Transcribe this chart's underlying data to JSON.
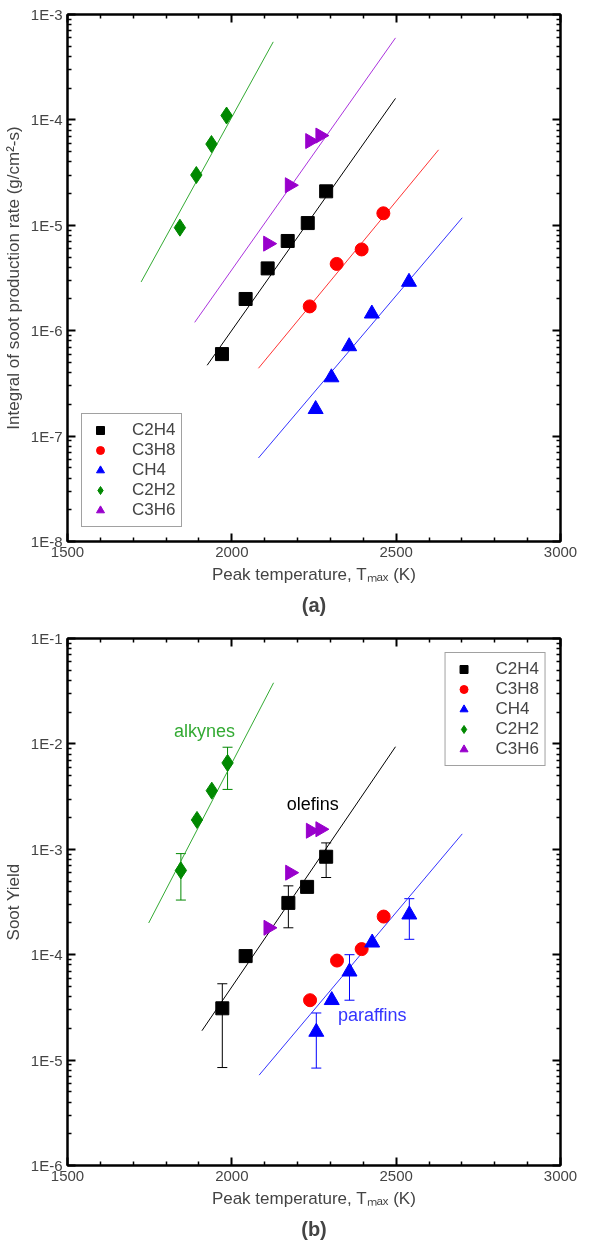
{
  "chart_data": [
    {
      "type": "scatter",
      "title": "(a)",
      "xlabel": "Peak temperature, Tₘₐₓ (K)",
      "ylabel": "Integral of soot production rate (g/cm²-s)",
      "xlim": [
        1500,
        3000
      ],
      "xticks": [
        1500,
        2000,
        2500,
        3000
      ],
      "ylim": [
        1e-08,
        0.001
      ],
      "log": "y",
      "yticks": [
        {
          "value": 1e-08,
          "label": "1E-8"
        },
        {
          "value": 1e-07,
          "label": "1E-7"
        },
        {
          "value": 1e-06,
          "label": "1E-6"
        },
        {
          "value": 1e-05,
          "label": "1E-5"
        },
        {
          "value": 0.0001,
          "label": "1E-4"
        },
        {
          "value": 0.001,
          "label": "1E-3"
        }
      ],
      "grid": false,
      "legend": "bottom left",
      "series": [
        {
          "type": "line",
          "color": "#33aa33",
          "x": [
            1724,
            2126
          ],
          "values": [
            2.9e-06,
            0.00055
          ]
        },
        {
          "type": "line",
          "color": "#aa33dd",
          "x": [
            1887,
            2498
          ],
          "values": [
            1.2e-06,
            0.0006
          ]
        },
        {
          "type": "line",
          "color": "#000000",
          "x": [
            1925,
            2498
          ],
          "values": [
            4.7e-07,
            0.00016
          ]
        },
        {
          "type": "line",
          "color": "#ff3333",
          "x": [
            2081,
            2629
          ],
          "values": [
            4.4e-07,
            5.2e-05
          ]
        },
        {
          "type": "line",
          "color": "#3333ff",
          "x": [
            2081,
            2701
          ],
          "values": [
            6.2e-08,
            1.18e-05
          ]
        },
        {
          "name": "C2H4",
          "color": "#000000",
          "marker": "square",
          "x": [
            1970,
            2042,
            2109,
            2170,
            2231,
            2287
          ],
          "values": [
            6e-07,
            2e-06,
            3.9e-06,
            7.1e-06,
            1.05e-05,
            2.1e-05
          ]
        },
        {
          "name": "C3H8",
          "color": "#ff0000",
          "marker": "circle",
          "x": [
            2237,
            2319,
            2395,
            2461
          ],
          "values": [
            1.7e-06,
            4.3e-06,
            5.9e-06,
            1.3e-05
          ]
        },
        {
          "name": "CH4",
          "color": "#0000ff",
          "marker": "triangle",
          "x": [
            2255,
            2303,
            2357,
            2426,
            2539
          ],
          "values": [
            1.8e-07,
            3.6e-07,
            7.1e-07,
            1.45e-06,
            2.9e-06
          ]
        },
        {
          "name": "C2H2",
          "color": "#008800",
          "marker": "diamond",
          "x": [
            1842,
            1892,
            1938,
            1984
          ],
          "values": [
            9.5e-06,
            3e-05,
            5.9e-05,
            0.00011
          ]
        },
        {
          "name": "C3H6",
          "color": "#9900cc",
          "marker": "triangle_right",
          "x": [
            2110,
            2176,
            2238,
            2269
          ],
          "values": [
            6.7e-06,
            2.4e-05,
            6.3e-05,
            7.1e-05
          ]
        }
      ]
    },
    {
      "type": "scatter",
      "title": "(b)",
      "xlabel": "Peak temperature, Tₘₐₓ (K)",
      "ylabel": "Soot Yield",
      "xlim": [
        1500,
        3000
      ],
      "xticks": [
        1500,
        2000,
        2500,
        3000
      ],
      "ylim": [
        1e-06,
        0.1
      ],
      "log": "y",
      "yticks": [
        {
          "value": 1e-06,
          "label": "1E-6"
        },
        {
          "value": 1e-05,
          "label": "1E-5"
        },
        {
          "value": 0.0001,
          "label": "1E-4"
        },
        {
          "value": 0.001,
          "label": "1E-3"
        },
        {
          "value": 0.01,
          "label": "1E-2"
        },
        {
          "value": 0.1,
          "label": "1E-1"
        }
      ],
      "grid": false,
      "legend": "top right",
      "series": [
        {
          "type": "line",
          "name": "alkynes",
          "color": "#33aa33",
          "x": [
            1747,
            2127
          ],
          "values": [
            0.0002,
            0.038
          ]
        },
        {
          "type": "line",
          "name": "olefins",
          "color": "#000000",
          "x": [
            1909,
            2498
          ],
          "values": [
            1.9e-05,
            0.0094
          ]
        },
        {
          "type": "line",
          "name": "paraffins",
          "color": "#3333ff",
          "x": [
            2083,
            2701
          ],
          "values": [
            7.2e-06,
            0.0014
          ]
        },
        {
          "name": "C2H4",
          "color": "#000000",
          "marker": "square",
          "x": [
            1971,
            2042,
            2172,
            2229,
            2287
          ],
          "values": [
            3.1e-05,
            9.7e-05,
            0.00031,
            0.00044,
            0.00085
          ],
          "errors": [
            [
              8.5e-06,
              5.3e-05
            ],
            null,
            [
              0.00018,
              0.00045
            ],
            null,
            [
              0.00054,
              0.00115
            ]
          ]
        },
        {
          "name": "C3H8",
          "color": "#ff0000",
          "marker": "circle",
          "x": [
            2238,
            2320,
            2395,
            2462
          ],
          "values": [
            3.7e-05,
            8.8e-05,
            0.000113,
            0.00023
          ]
        },
        {
          "name": "CH4",
          "color": "#0000ff",
          "marker": "triangle",
          "x": [
            2257,
            2304,
            2358,
            2427,
            2540
          ],
          "values": [
            1.85e-05,
            3.7e-05,
            6.9e-05,
            0.00013,
            0.00024
          ],
          "errors": [
            [
              8.4e-06,
              2.8e-05
            ],
            null,
            [
              3.7e-05,
              0.0001
            ],
            null,
            [
              0.00014,
              0.00034
            ]
          ]
        },
        {
          "name": "C2H2",
          "color": "#008800",
          "marker": "diamond",
          "x": [
            1845,
            1894,
            1939,
            1987
          ],
          "values": [
            0.00063,
            0.0019,
            0.0036,
            0.0066
          ],
          "errors": [
            [
              0.00033,
              0.00091
            ],
            null,
            null,
            [
              0.0037,
              0.0093
            ]
          ]
        },
        {
          "name": "C3H6",
          "color": "#9900cc",
          "marker": "triangle_right",
          "x": [
            2111,
            2177,
            2240,
            2269
          ],
          "values": [
            0.00018,
            0.0006,
            0.0015,
            0.00155
          ]
        }
      ]
    }
  ]
}
